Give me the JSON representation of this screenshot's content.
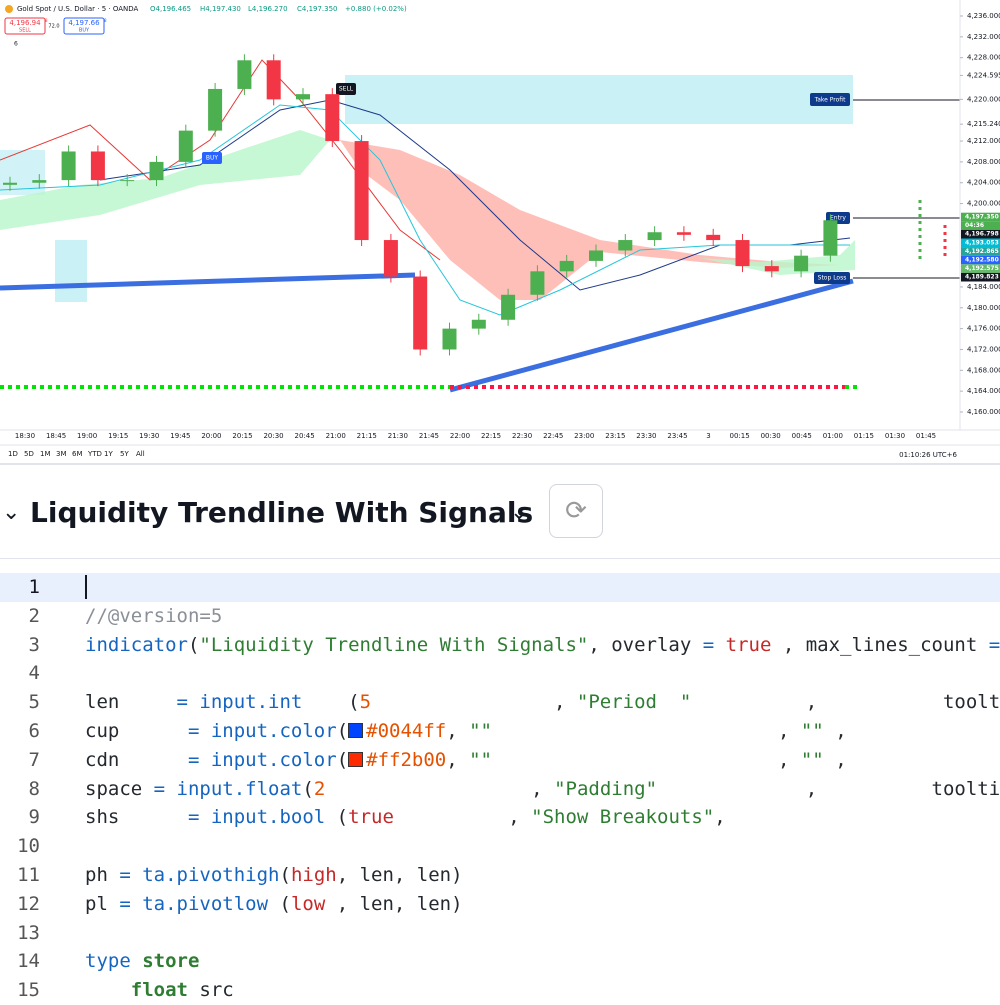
{
  "chart": {
    "symbol": "Gold Spot / U.S. Dollar · 5 · OANDA",
    "ohlc": [
      "O4,196.465",
      "H4,197.430",
      "L4,196.270",
      "C4,197.350",
      "+0.880 (+0.02%)"
    ],
    "sell": {
      "price": "4,196.94",
      "sup": "8",
      "label": "SELL"
    },
    "spread": "72.0",
    "buy": {
      "price": "4,197.66",
      "sup": "8",
      "label": "BUY"
    },
    "indicator_count": "6",
    "ylim": [
      4160,
      4236
    ],
    "yticks": [
      {
        "value": 4236,
        "label": "4,236.000"
      },
      {
        "value": 4232,
        "label": "4,232.000"
      },
      {
        "value": 4228,
        "label": "4,228.000"
      },
      {
        "value": 4224.595,
        "label": "4,224.595"
      },
      {
        "value": 4220,
        "label": "4,220.000"
      },
      {
        "value": 4215.24,
        "label": "4,215.240"
      },
      {
        "value": 4212,
        "label": "4,212.000"
      },
      {
        "value": 4208,
        "label": "4,208.000"
      },
      {
        "value": 4204,
        "label": "4,204.000"
      },
      {
        "value": 4200,
        "label": "4,200.000"
      },
      {
        "value": 4184,
        "label": "4,184.000"
      },
      {
        "value": 4180,
        "label": "4,180.000"
      },
      {
        "value": 4176,
        "label": "4,176.000"
      },
      {
        "value": 4172,
        "label": "4,172.000"
      },
      {
        "value": 4168,
        "label": "4,168.000"
      },
      {
        "value": 4164,
        "label": "4,164.000"
      },
      {
        "value": 4160,
        "label": "4,160.000"
      }
    ],
    "price_tags": [
      {
        "label": "4,197.350",
        "color": "#4caf50"
      },
      {
        "label": "04:36",
        "color": "#4caf50"
      },
      {
        "label": "4,196.798",
        "color": "#131722"
      },
      {
        "label": "4,193.053",
        "color": "#00bcd4"
      },
      {
        "label": "4,192.865",
        "color": "#26a69a"
      },
      {
        "label": "4,192.580",
        "color": "#2962ff"
      },
      {
        "label": "4,192.575",
        "color": "#66bb6a"
      },
      {
        "label": "4,189.823",
        "color": "#131722"
      }
    ],
    "up_color": "#4caf50",
    "down_color": "#f23645",
    "candles": {
      "open": [
        4203.6,
        4204,
        4204.5,
        4210,
        4204.5,
        4204.5,
        4208,
        4214,
        4222,
        4227.5,
        4220,
        4221,
        4212,
        4193,
        4186,
        4172,
        4176,
        4177.7,
        4182.5,
        4187,
        4189,
        4191,
        4193,
        4194.5,
        4194,
        4193,
        4188,
        4187,
        4190
      ],
      "close": [
        4204,
        4204.5,
        4210,
        4204.5,
        4204.5,
        4208,
        4214,
        4222,
        4227.5,
        4220,
        4221,
        4212,
        4193,
        4186,
        4172,
        4176,
        4177.7,
        4182.5,
        4187,
        4189,
        4191,
        4193,
        4194.5,
        4194,
        4193,
        4188,
        4187,
        4190,
        4196.8
      ]
    },
    "signals": {
      "buy": "BUY",
      "sell": "SELL",
      "take_profit": "Take Profit",
      "entry": "Entry",
      "stop_loss": "Stop Loss"
    },
    "time_labels": [
      "18:30",
      "18:45",
      "19:00",
      "19:15",
      "19:30",
      "19:45",
      "20:00",
      "20:15",
      "20:30",
      "20:45",
      "21:00",
      "21:15",
      "21:30",
      "21:45",
      "22:00",
      "22:15",
      "22:30",
      "22:45",
      "23:00",
      "23:15",
      "23:30",
      "23:45",
      "3",
      "00:15",
      "00:30",
      "00:45",
      "01:00",
      "01:15",
      "01:30",
      "01:45"
    ],
    "ranges": [
      "1D",
      "5D",
      "1M",
      "3M",
      "6M",
      "YTD",
      "1Y",
      "5Y",
      "All"
    ],
    "clock": "01:10:26 UTC+6"
  },
  "editor": {
    "title": "Liquidity Trendline With Signals",
    "lines": [
      {
        "n": 1,
        "tokens": []
      },
      {
        "n": 2,
        "tokens": [
          {
            "t": "//@version=5",
            "c": "#8a8f98"
          }
        ]
      },
      {
        "n": 3,
        "tokens": [
          {
            "t": "indicator",
            "c": "#1565c0"
          },
          {
            "t": "(",
            "c": "#24292f"
          },
          {
            "t": "\"Liquidity Trendline With Signals\"",
            "c": "#2e7d32"
          },
          {
            "t": ", overlay ",
            "c": "#24292f"
          },
          {
            "t": "=",
            "c": "#1565c0"
          },
          {
            "t": " ",
            "c": "#24292f"
          },
          {
            "t": "true",
            "c": "#c62828"
          },
          {
            "t": " , max_lines_count ",
            "c": "#24292f"
          },
          {
            "t": "=",
            "c": "#1565c0"
          }
        ]
      },
      {
        "n": 4,
        "tokens": []
      },
      {
        "n": 5,
        "tokens": [
          {
            "t": "len     ",
            "c": "#24292f"
          },
          {
            "t": "= ",
            "c": "#1565c0"
          },
          {
            "t": "input.int",
            "c": "#1565c0"
          },
          {
            "t": "    (",
            "c": "#24292f"
          },
          {
            "t": "5",
            "c": "#e65100"
          },
          {
            "t": "                , ",
            "c": "#24292f"
          },
          {
            "t": "\"Period  \"",
            "c": "#2e7d32"
          },
          {
            "t": "          ,           toolt",
            "c": "#24292f"
          }
        ]
      },
      {
        "n": 6,
        "tokens": [
          {
            "t": "cup      ",
            "c": "#24292f"
          },
          {
            "t": "= ",
            "c": "#1565c0"
          },
          {
            "t": "input.color",
            "c": "#1565c0"
          },
          {
            "t": "(",
            "c": "#24292f"
          },
          {
            "t": "#0044ff",
            "c": "#e65100",
            "swatch": "#0044ff"
          },
          {
            "t": ", ",
            "c": "#24292f"
          },
          {
            "t": "\"\"",
            "c": "#2e7d32"
          },
          {
            "t": "                         , ",
            "c": "#24292f"
          },
          {
            "t": "\"\"",
            "c": "#2e7d32"
          },
          {
            "t": " ,",
            "c": "#24292f"
          }
        ]
      },
      {
        "n": 7,
        "tokens": [
          {
            "t": "cdn      ",
            "c": "#24292f"
          },
          {
            "t": "= ",
            "c": "#1565c0"
          },
          {
            "t": "input.color",
            "c": "#1565c0"
          },
          {
            "t": "(",
            "c": "#24292f"
          },
          {
            "t": "#ff2b00",
            "c": "#e65100",
            "swatch": "#ff2b00"
          },
          {
            "t": ", ",
            "c": "#24292f"
          },
          {
            "t": "\"\"",
            "c": "#2e7d32"
          },
          {
            "t": "                         , ",
            "c": "#24292f"
          },
          {
            "t": "\"\"",
            "c": "#2e7d32"
          },
          {
            "t": " ,",
            "c": "#24292f"
          }
        ]
      },
      {
        "n": 8,
        "tokens": [
          {
            "t": "space ",
            "c": "#24292f"
          },
          {
            "t": "= ",
            "c": "#1565c0"
          },
          {
            "t": "input.float",
            "c": "#1565c0"
          },
          {
            "t": "(",
            "c": "#24292f"
          },
          {
            "t": "2",
            "c": "#e65100"
          },
          {
            "t": "                  , ",
            "c": "#24292f"
          },
          {
            "t": "\"Padding\"",
            "c": "#2e7d32"
          },
          {
            "t": "             ,          tooltip",
            "c": "#24292f"
          }
        ]
      },
      {
        "n": 9,
        "tokens": [
          {
            "t": "shs      ",
            "c": "#24292f"
          },
          {
            "t": "= ",
            "c": "#1565c0"
          },
          {
            "t": "input.bool",
            "c": "#1565c0"
          },
          {
            "t": " (",
            "c": "#24292f"
          },
          {
            "t": "true",
            "c": "#c62828"
          },
          {
            "t": "          , ",
            "c": "#24292f"
          },
          {
            "t": "\"Show Breakouts\"",
            "c": "#2e7d32"
          },
          {
            "t": ",",
            "c": "#24292f"
          }
        ]
      },
      {
        "n": 10,
        "tokens": []
      },
      {
        "n": 11,
        "tokens": [
          {
            "t": "ph ",
            "c": "#24292f"
          },
          {
            "t": "= ",
            "c": "#1565c0"
          },
          {
            "t": "ta.pivothigh",
            "c": "#1565c0"
          },
          {
            "t": "(",
            "c": "#24292f"
          },
          {
            "t": "high",
            "c": "#c62828"
          },
          {
            "t": ", len, len)",
            "c": "#24292f"
          }
        ]
      },
      {
        "n": 12,
        "tokens": [
          {
            "t": "pl ",
            "c": "#24292f"
          },
          {
            "t": "= ",
            "c": "#1565c0"
          },
          {
            "t": "ta.pivotlow",
            "c": "#1565c0"
          },
          {
            "t": " (",
            "c": "#24292f"
          },
          {
            "t": "low",
            "c": "#c62828"
          },
          {
            "t": " , len, len)",
            "c": "#24292f"
          }
        ]
      },
      {
        "n": 13,
        "tokens": []
      },
      {
        "n": 14,
        "tokens": [
          {
            "t": "type",
            "c": "#1565c0"
          },
          {
            "t": " ",
            "c": "#24292f"
          },
          {
            "t": "store",
            "c": "#2e7d32",
            "bold": true
          }
        ]
      },
      {
        "n": 15,
        "tokens": [
          {
            "t": "    ",
            "c": "#24292f"
          },
          {
            "t": "float",
            "c": "#2e7d32",
            "bold": true
          },
          {
            "t": " src",
            "c": "#24292f"
          }
        ]
      }
    ]
  }
}
